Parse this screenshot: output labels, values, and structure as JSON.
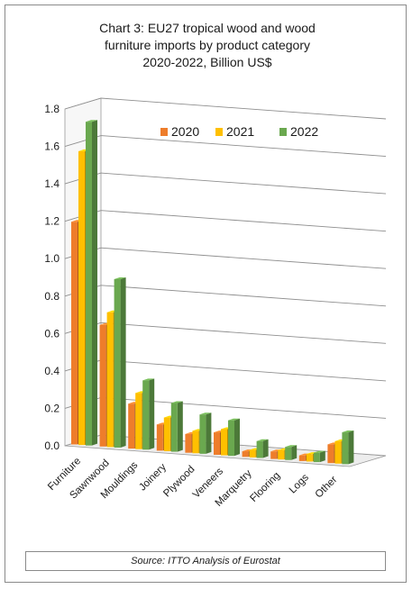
{
  "chart_data": {
    "type": "bar",
    "title": "Chart 3: EU27 tropical wood and wood\nfurniture imports by product category\n2020-2022, Billion US$",
    "categories": [
      "Furniture",
      "Sawnwood",
      "Mouldings",
      "Joinery",
      "Plywood",
      "Veneers",
      "Marquetry",
      "Flooring",
      "Logs",
      "Other"
    ],
    "series": [
      {
        "name": "2020",
        "color": "#ee7d2b",
        "values": [
          1.19,
          0.65,
          0.24,
          0.14,
          0.1,
          0.12,
          0.03,
          0.04,
          0.03,
          0.1
        ]
      },
      {
        "name": "2021",
        "color": "#ffc000",
        "values": [
          1.57,
          0.72,
          0.3,
          0.18,
          0.12,
          0.14,
          0.04,
          0.05,
          0.04,
          0.12
        ]
      },
      {
        "name": "2022",
        "color": "#6aa84f",
        "values": [
          1.73,
          0.9,
          0.37,
          0.26,
          0.21,
          0.19,
          0.09,
          0.07,
          0.05,
          0.17
        ]
      }
    ],
    "yticks": [
      "0.0",
      "0.2",
      "0.4",
      "0.6",
      "0.8",
      "1.0",
      "1.2",
      "1.4",
      "1.6",
      "1.8"
    ],
    "ylim": [
      0,
      1.8
    ],
    "grid": true,
    "legend": "top-right"
  },
  "source": "Source: ITTO Analysis of Eurostat"
}
